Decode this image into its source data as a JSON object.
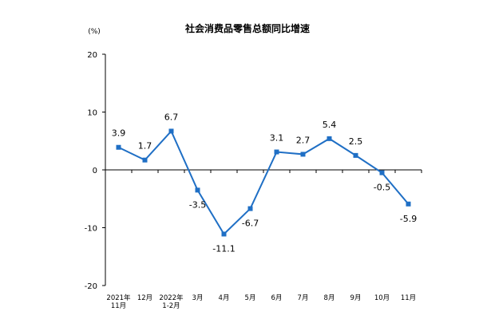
{
  "chart_data": {
    "type": "line",
    "title": "社会消费品零售总额同比增速",
    "unit": "(%)",
    "categories": [
      [
        "2021年",
        "11月"
      ],
      [
        "12月"
      ],
      [
        "2022年",
        "1-2月"
      ],
      [
        "3月"
      ],
      [
        "4月"
      ],
      [
        "5月"
      ],
      [
        "6月"
      ],
      [
        "7月"
      ],
      [
        "8月"
      ],
      [
        "9月"
      ],
      [
        "10月"
      ],
      [
        "11月"
      ]
    ],
    "values": [
      3.9,
      1.7,
      6.7,
      -3.5,
      -11.1,
      -6.7,
      3.1,
      2.7,
      5.4,
      2.5,
      -0.5,
      -5.9
    ],
    "data_labels": [
      "3.9",
      "1.7",
      "6.7",
      "-3.5",
      "-11.1",
      "-6.7",
      "3.1",
      "2.7",
      "5.4",
      "2.5",
      "-0.5",
      "-5.9"
    ],
    "label_position": [
      "above",
      "above",
      "above",
      "below",
      "below",
      "below",
      "above",
      "above",
      "above",
      "above",
      "below",
      "below"
    ],
    "ylim": [
      -20,
      20
    ],
    "yticks": [
      "20",
      "10",
      "0",
      "-10",
      "-20"
    ],
    "ytick_values": [
      20,
      10,
      0,
      -10,
      -20
    ],
    "grid": false,
    "colors": {
      "line": "#1f6fc5",
      "marker": "#1f6fc5",
      "axis": "#000000"
    }
  }
}
